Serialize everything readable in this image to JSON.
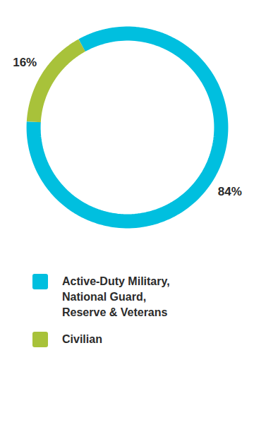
{
  "chart_data": {
    "type": "donut",
    "categories": [
      "Active-Duty Military, National Guard, Reserve & Veterans",
      "Civilian"
    ],
    "values": [
      84,
      16
    ],
    "value_labels": [
      "84%",
      "16%"
    ],
    "colors": [
      "#00bfdf",
      "#a8c23a"
    ],
    "data_labels": true,
    "legend": "bottom"
  }
}
